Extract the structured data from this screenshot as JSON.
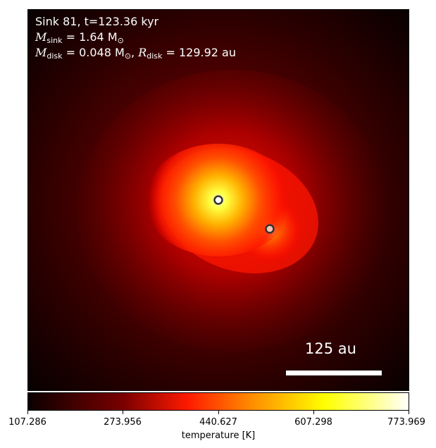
{
  "annotation": {
    "line1": "Sink 81, t=123.36 kyr",
    "msink_var": "M",
    "msink_sub": "sink",
    "msink_value": " = 1.64 M",
    "msun_sub": "⊙",
    "mdisk_var": "M",
    "mdisk_sub": "disk",
    "mdisk_value": " = 0.048 M",
    "mdisk_sun_sub": "⊙",
    "rdisk_sep": ", ",
    "rdisk_var": "R",
    "rdisk_sub": "disk",
    "rdisk_value": " = 129.92 au"
  },
  "scale_bar": {
    "label": "125 au"
  },
  "colorbar": {
    "label": "temperature [K]",
    "ticks": [
      "107.286",
      "273.956",
      "440.627",
      "607.298",
      "773.969"
    ],
    "min": 107.286,
    "max": 773.969,
    "colormap": "hot"
  },
  "sinks": [
    {
      "name": "primary",
      "fill": "#ffffff",
      "edge": "#333333"
    },
    {
      "name": "secondary",
      "fill": "#f4c4b0",
      "edge": "#333333"
    }
  ]
}
